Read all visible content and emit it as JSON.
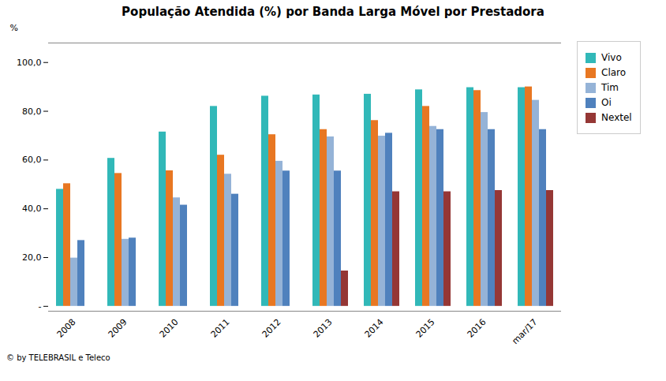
{
  "chart_data": {
    "type": "bar",
    "title": "População Atendida (%) por Banda Larga Móvel por Prestadora",
    "ylabel": "%",
    "footnote": "© by TELEBRASIL e Teleco",
    "categories": [
      "2008",
      "2009",
      "2010",
      "2011",
      "2012",
      "2013",
      "2014",
      "2015",
      "2016",
      "mar/17"
    ],
    "series": [
      {
        "name": "Vivo",
        "color": "#31B8B8",
        "values": [
          48.0,
          60.7,
          71.5,
          82.0,
          86.2,
          86.7,
          87.0,
          88.8,
          89.7,
          89.7
        ]
      },
      {
        "name": "Claro",
        "color": "#E87722",
        "values": [
          50.3,
          54.5,
          55.6,
          62.0,
          70.4,
          72.5,
          76.2,
          82.0,
          88.5,
          90.0
        ]
      },
      {
        "name": "Tim",
        "color": "#95B3D7",
        "values": [
          19.8,
          27.5,
          44.5,
          54.2,
          59.5,
          69.5,
          69.8,
          73.8,
          79.5,
          84.5
        ]
      },
      {
        "name": "Oi",
        "color": "#4F81BD",
        "values": [
          27.0,
          28.0,
          41.5,
          46.0,
          55.5,
          55.5,
          71.0,
          72.5,
          72.5,
          72.5
        ]
      },
      {
        "name": "Nextel",
        "color": "#953735",
        "values": [
          null,
          null,
          null,
          null,
          null,
          14.5,
          47.0,
          47.0,
          47.5,
          47.5
        ]
      }
    ],
    "ylim": [
      -2,
      108
    ],
    "yticks": [
      {
        "value": 0,
        "label": "-"
      },
      {
        "value": 20,
        "label": "20,0"
      },
      {
        "value": 40,
        "label": "40,0"
      },
      {
        "value": 60,
        "label": "60,0"
      },
      {
        "value": 80,
        "label": "80,0"
      },
      {
        "value": 100,
        "label": "100,0"
      }
    ],
    "grid": false,
    "legend": "right"
  }
}
